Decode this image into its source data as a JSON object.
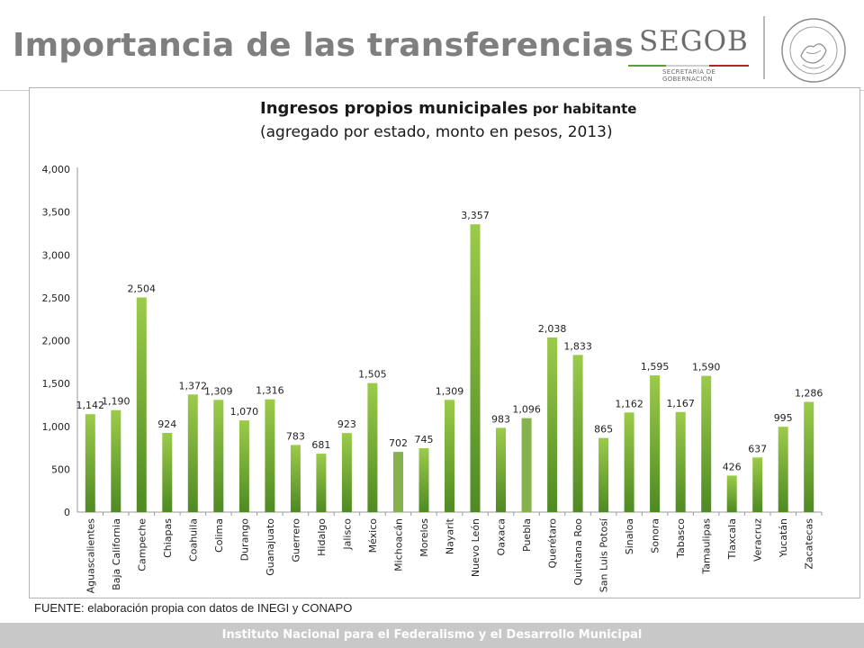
{
  "slide": {
    "title": "Importancia de las transferencias",
    "source": "FUENTE: elaboración propia con datos de INEGI y CONAPO",
    "footer": "Instituto Nacional para el Federalismo y el Desarrollo Municipal"
  },
  "logo": {
    "brand": "SEGOB",
    "subtitle_line1": "SECRETARÍA DE",
    "subtitle_line2": "GOBERNACIÓN",
    "brand_colors": [
      "#5aa03a",
      "#cfcfcf",
      "#b0252c"
    ]
  },
  "chart_data": {
    "type": "bar",
    "title_main": "Ingresos propios municipales",
    "title_suffix": " por habitante",
    "subtitle": "(agregado por estado, monto en pesos, 2013)",
    "categories": [
      "Aguascalientes",
      "Baja California",
      "Campeche",
      "Chiapas",
      "Coahuila",
      "Colima",
      "Durango",
      "Guanajuato",
      "Guerrero",
      "Hidalgo",
      "Jalisco",
      "México",
      "Michoacán",
      "Morelos",
      "Nayarit",
      "Nuevo León",
      "Oaxaca",
      "Puebla",
      "Querétaro",
      "Quintana Roo",
      "San Luis Potosí",
      "Sinaloa",
      "Sonora",
      "Tabasco",
      "Tamaulipas",
      "Tlaxcala",
      "Veracruz",
      "Yucatán",
      "Zacatecas"
    ],
    "values": [
      1142,
      1190,
      2504,
      924,
      1372,
      1309,
      1070,
      1316,
      783,
      681,
      923,
      1505,
      702,
      745,
      1309,
      3357,
      983,
      1096,
      2038,
      1833,
      865,
      1162,
      1595,
      1167,
      1590,
      426,
      637,
      995,
      1286
    ],
    "value_labels": [
      "1,142",
      "1,190",
      "2,504",
      "924",
      "1,372",
      "1,309",
      "1,070",
      "1,316",
      "783",
      "681",
      "923",
      "1,505",
      "702",
      "745",
      "1,309",
      "3,357",
      "983",
      "1,096",
      "2,038",
      "1,833",
      "865",
      "1,162",
      "1,595",
      "1,167",
      "1,590",
      "426",
      "637",
      "995",
      "1,286"
    ],
    "ylim": [
      0,
      4000
    ],
    "yticks": [
      0,
      500,
      1000,
      1500,
      2000,
      2500,
      3000,
      3500,
      4000
    ],
    "ytick_labels": [
      "0",
      "500",
      "1,000",
      "1,500",
      "2,000",
      "2,500",
      "3,000",
      "3,500",
      "4,000"
    ],
    "grid": false,
    "bar_color_top": "#9ccb4a",
    "bar_color_bottom": "#4e8a22",
    "highlight_color": "#86b24e",
    "highlighted": [
      "Michoacán",
      "Puebla"
    ]
  }
}
